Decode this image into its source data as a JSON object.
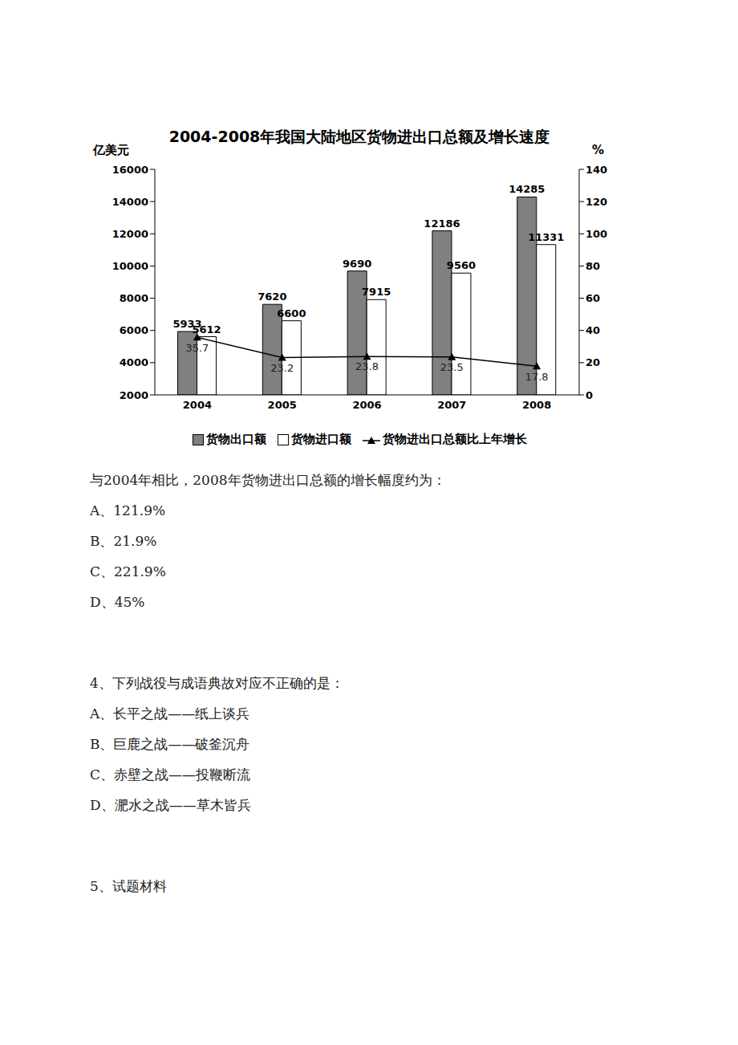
{
  "chart_data": {
    "type": "bar",
    "title": "2004-2008年我国大陆地区货物进出口总额及增长速度",
    "y_label": "亿美元",
    "y2_label": "%",
    "categories": [
      "2004",
      "2005",
      "2006",
      "2007",
      "2008"
    ],
    "series": [
      {
        "name": "货物出口额",
        "type": "bar",
        "color": "#808080",
        "values": [
          5933,
          7620,
          9690,
          12186,
          14285
        ]
      },
      {
        "name": "货物进口额",
        "type": "bar",
        "color": "#ffffff",
        "values": [
          5612,
          6600,
          7915,
          9560,
          11331
        ]
      },
      {
        "name": "货物进出口总额比上年增长",
        "type": "line",
        "axis": "y2",
        "color": "#000000",
        "marker": "triangle",
        "values": [
          35.7,
          23.2,
          23.8,
          23.5,
          17.8
        ]
      }
    ],
    "ylim": [
      2000,
      16000
    ],
    "yticks": [
      2000,
      4000,
      6000,
      8000,
      10000,
      12000,
      14000,
      16000
    ],
    "y2lim": [
      0,
      140
    ],
    "y2ticks": [
      0,
      20,
      40,
      60,
      80,
      100,
      120,
      140
    ],
    "grid": false,
    "legend": "bottom",
    "data_labels": true
  },
  "questions": [
    {
      "stem": "与2004年相比，2008年货物进出口总额的增长幅度约为：",
      "options": [
        "A、121.9%",
        "B、21.9%",
        "C、221.9%",
        "D、45%"
      ]
    },
    {
      "stem": "4、下列战役与成语典故对应不正确的是：",
      "options": [
        "A、长平之战——纸上谈兵",
        "B、巨鹿之战——破釜沉舟",
        "C、赤壁之战——投鞭断流",
        "D、淝水之战——草木皆兵"
      ]
    },
    {
      "stem": "5、试题材料"
    }
  ]
}
